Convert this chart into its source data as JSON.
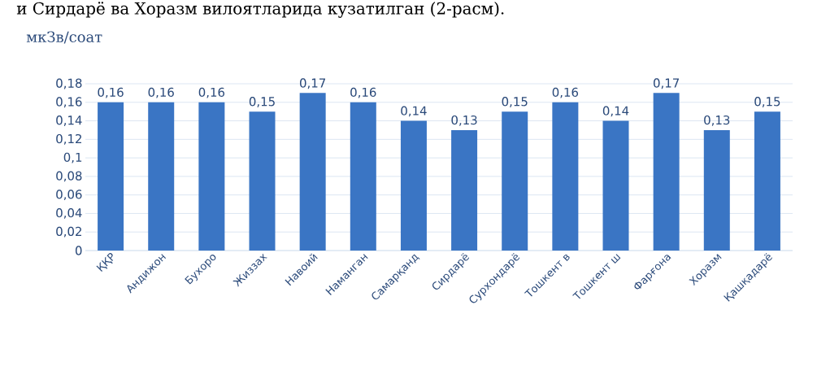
{
  "chart_data": {
    "type": "bar",
    "annotations": [
      "и Сирдарё ва Хоразм вилоятларида кузатилган (2-расм)."
    ],
    "ylabel": "мкЗв/соат",
    "categories": [
      "ҚҚР",
      "Андижон",
      "Бухоро",
      "Жиззах",
      "Навоий",
      "Наманган",
      "Самарқанд",
      "Сирдарё",
      "Сурхондарё",
      "Тошкент в",
      "Тошкент ш",
      "Фарғона",
      "Хоразм",
      "Қашқадарё"
    ],
    "values": [
      0.16,
      0.16,
      0.16,
      0.15,
      0.17,
      0.16,
      0.14,
      0.13,
      0.15,
      0.16,
      0.14,
      0.17,
      0.13,
      0.15
    ],
    "value_labels": [
      "0,16",
      "0,16",
      "0,16",
      "0,15",
      "0,17",
      "0,16",
      "0,14",
      "0,13",
      "0,15",
      "0,16",
      "0,14",
      "0,17",
      "0,13",
      "0,15"
    ],
    "color": "#3a75c4",
    "ylim": [
      0,
      0.18
    ],
    "yticks": [
      {
        "value": 0,
        "label": "0"
      },
      {
        "value": 0.02,
        "label": "0,02"
      },
      {
        "value": 0.04,
        "label": "0,04"
      },
      {
        "value": 0.06,
        "label": "0,06"
      },
      {
        "value": 0.08,
        "label": "0,08"
      },
      {
        "value": 0.1,
        "label": "0,1"
      },
      {
        "value": 0.12,
        "label": "0,12"
      },
      {
        "value": 0.14,
        "label": "0,14"
      },
      {
        "value": 0.16,
        "label": "0,16"
      },
      {
        "value": 0.18,
        "label": "0,18"
      }
    ],
    "grid": "y"
  }
}
